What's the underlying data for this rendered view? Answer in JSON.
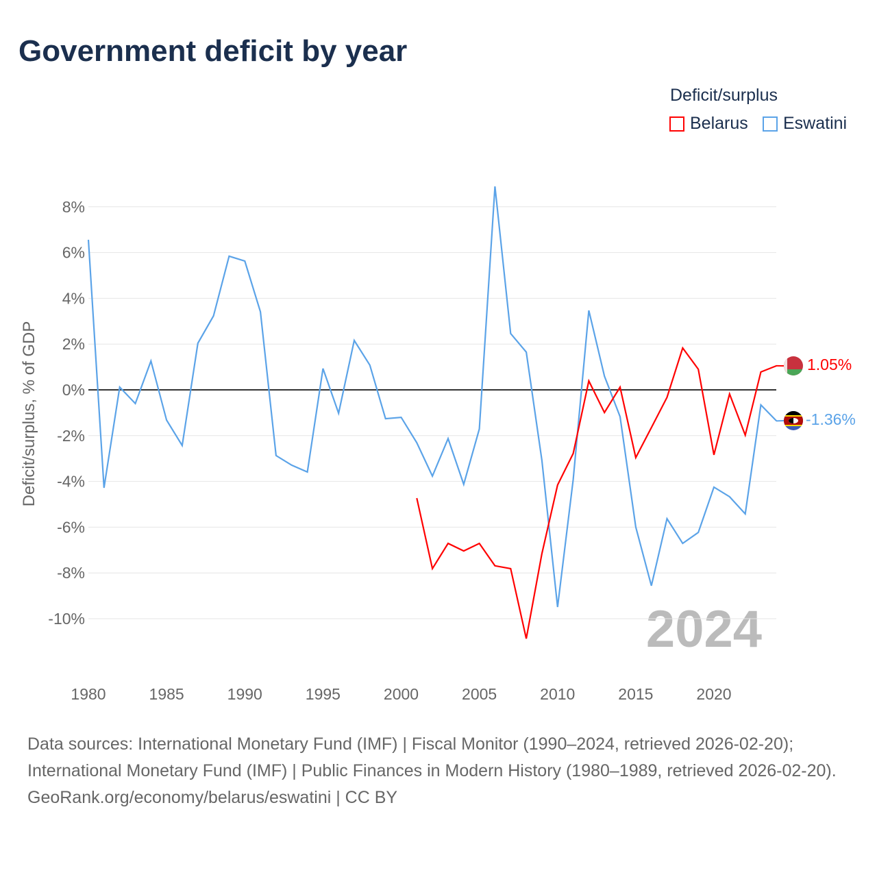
{
  "title": "Government deficit by year",
  "legend": {
    "title": "Deficit/surplus",
    "items": [
      "Belarus",
      "Eswatini"
    ]
  },
  "year_label": "2024",
  "end_labels": {
    "Belarus": "1.05%",
    "Eswatini": "-1.36%"
  },
  "source_lines": [
    "Data sources: International Monetary Fund (IMF) | Fiscal Monitor (1990–2024, retrieved 2026-02-20); International Monetary Fund (IMF) | Public Finances in Modern History (1980–1989, retrieved 2026-02-20).",
    "GeoRank.org/economy/belarus/eswatini | CC BY"
  ],
  "chart_data": {
    "type": "line",
    "title": "Government deficit by year",
    "ylabel": "Deficit/surplus, % of GDP",
    "xlabel": "",
    "xlim": [
      1980,
      2024
    ],
    "ylim": [
      -12,
      9
    ],
    "yticks": [
      8,
      6,
      4,
      2,
      0,
      -2,
      -4,
      -6,
      -8,
      -10
    ],
    "ytick_labels": [
      "8%",
      "6%",
      "4%",
      "2%",
      "0%",
      "-2%",
      "-4%",
      "-6%",
      "-8%",
      "-10%"
    ],
    "xticks": [
      1980,
      1985,
      1990,
      1995,
      2000,
      2005,
      2010,
      2015,
      2020
    ],
    "grid": true,
    "legend_position": "top-right",
    "series": [
      {
        "name": "Belarus",
        "color": "#ff0000",
        "start": 2001,
        "values": [
          -4.73,
          -7.81,
          -6.71,
          -7.04,
          -6.71,
          -7.69,
          -7.81,
          -10.87,
          -7.16,
          -4.16,
          -2.78,
          0.39,
          -0.99,
          0.12,
          -2.96,
          -1.65,
          -0.33,
          1.83,
          0.9,
          -2.84,
          -0.18,
          -1.98,
          0.78,
          1.05
        ]
      },
      {
        "name": "Eswatini",
        "color": "#5ba3e8",
        "start": 1980,
        "values": [
          6.56,
          -4.28,
          0.12,
          -0.6,
          1.26,
          -1.32,
          -2.43,
          2.04,
          3.23,
          5.84,
          5.63,
          3.41,
          -2.87,
          -3.29,
          -3.59,
          0.93,
          -1.02,
          2.16,
          1.08,
          -1.26,
          -1.2,
          -2.31,
          -3.77,
          -2.13,
          -4.13,
          -1.71,
          8.89,
          2.46,
          1.65,
          -3.08,
          -9.49,
          -3.92,
          3.47,
          0.6,
          -1.17,
          -5.99,
          -8.56,
          -5.63,
          -6.71,
          -6.23,
          -4.25,
          -4.67,
          -5.42,
          -0.66,
          -1.36
        ]
      }
    ]
  }
}
